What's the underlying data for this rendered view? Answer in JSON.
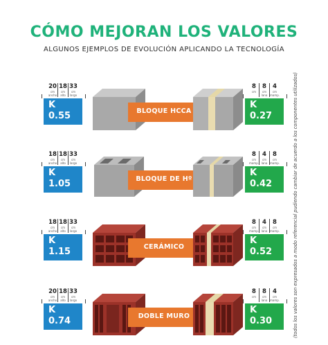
{
  "title": "CÓMO MEJORAN LOS VALORES",
  "subtitle": "ALGUNOS EJEMPLOS DE EVOLUCIÓN APLICANDO LA TECNOLOGÍA",
  "side_note": "(todos los valores son expresados a modo referencial pudiendo cambiar de acuerdo a los componentes utilizados)",
  "colors": {
    "title": "#1fb27a",
    "before": "#1f86c9",
    "after": "#22a84b",
    "band": "#e8782e"
  },
  "rows": [
    {
      "label": "BLOQUE HCCA",
      "before": {
        "k": "K",
        "value": "0.55",
        "dims": [
          {
            "n": "20",
            "u": "cm ancho"
          },
          {
            "n": "18",
            "u": "cm alto"
          },
          {
            "n": "33",
            "u": "cm largo"
          }
        ]
      },
      "after": {
        "k": "K",
        "value": "0.27",
        "dims": [
          {
            "n": "8",
            "u": "cm"
          },
          {
            "n": "8",
            "u": "cm lana"
          },
          {
            "n": "4",
            "u": "cm mamp."
          }
        ]
      }
    },
    {
      "label": "BLOQUE DE Hº",
      "before": {
        "k": "K",
        "value": "1.05",
        "dims": [
          {
            "n": "18",
            "u": "cm ancho"
          },
          {
            "n": "18",
            "u": "cm alto"
          },
          {
            "n": "33",
            "u": "cm largo"
          }
        ]
      },
      "after": {
        "k": "K",
        "value": "0.42",
        "dims": [
          {
            "n": "8",
            "u": "cm mamp."
          },
          {
            "n": "4",
            "u": "cm lana"
          },
          {
            "n": "8",
            "u": "cm mamp."
          }
        ]
      }
    },
    {
      "label": "CERÁMICO",
      "before": {
        "k": "K",
        "value": "1.15",
        "dims": [
          {
            "n": "18",
            "u": "cm ancho"
          },
          {
            "n": "18",
            "u": "cm alto"
          },
          {
            "n": "33",
            "u": "cm largo"
          }
        ]
      },
      "after": {
        "k": "K",
        "value": "0.52",
        "dims": [
          {
            "n": "8",
            "u": "cm mamp."
          },
          {
            "n": "4",
            "u": "cm lana"
          },
          {
            "n": "8",
            "u": "cm mamp."
          }
        ]
      }
    },
    {
      "label": "DOBLE MURO",
      "before": {
        "k": "K",
        "value": "0.74",
        "dims": [
          {
            "n": "20",
            "u": "cm ancho"
          },
          {
            "n": "18",
            "u": "cm alto"
          },
          {
            "n": "33",
            "u": "cm largo"
          }
        ]
      },
      "after": {
        "k": "K",
        "value": "0.30",
        "dims": [
          {
            "n": "8",
            "u": "cm"
          },
          {
            "n": "8",
            "u": "cm lana"
          },
          {
            "n": "4",
            "u": "cm mamp."
          }
        ]
      }
    }
  ]
}
